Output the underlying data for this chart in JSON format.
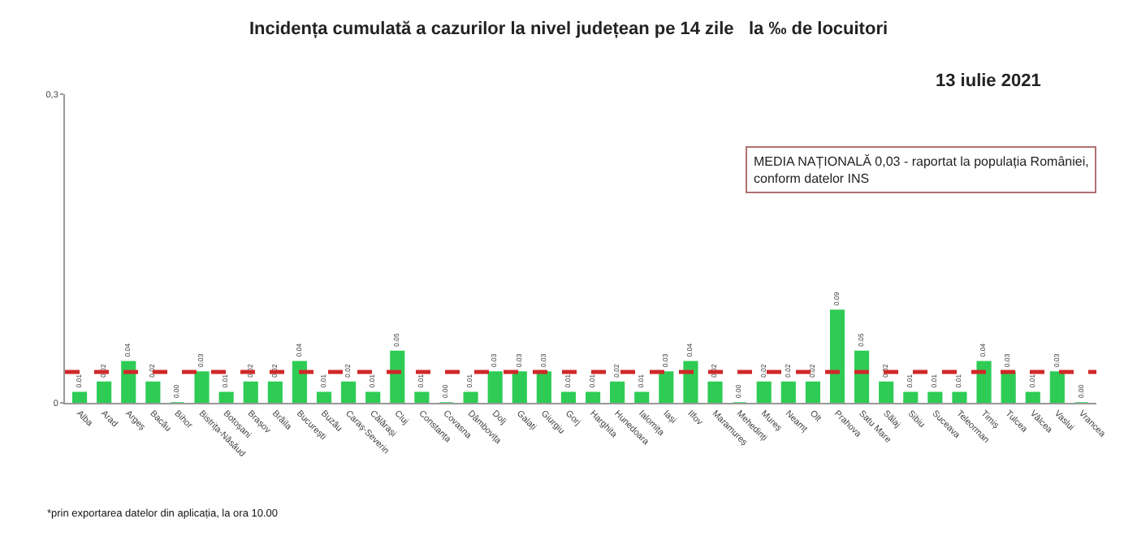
{
  "chart_data": {
    "type": "bar",
    "title": "Incidența cumulată a cazurilor la nivel județean pe 14 zile   la ‰ de locuitori",
    "subtitle": "13 iulie 2021",
    "categories": [
      "Alba",
      "Arad",
      "Argeș",
      "Bacău",
      "Bihor",
      "Bistrița-Năsăud",
      "Botoșani",
      "Brașov",
      "Brăila",
      "București",
      "Buzău",
      "Caraș-Severin",
      "Călărași",
      "Cluj",
      "Constanța",
      "Covasna",
      "Dâmbovița",
      "Dolj",
      "Galați",
      "Giurgiu",
      "Gorj",
      "Harghita",
      "Hunedoara",
      "Ialomița",
      "Iași",
      "Ilfov",
      "Maramureș",
      "Mehedinți",
      "Mureș",
      "Neamț",
      "Olt",
      "Prahova",
      "Satu Mare",
      "Sălaj",
      "Sibiu",
      "Suceava",
      "Teleorman",
      "Timiș",
      "Tulcea",
      "Vâlcea",
      "Vaslui",
      "Vrancea"
    ],
    "values": [
      0.01,
      0.02,
      0.04,
      0.02,
      0.0,
      0.03,
      0.01,
      0.02,
      0.02,
      0.04,
      0.01,
      0.02,
      0.01,
      0.05,
      0.01,
      0.0,
      0.01,
      0.03,
      0.03,
      0.03,
      0.01,
      0.01,
      0.02,
      0.01,
      0.03,
      0.04,
      0.02,
      0.0,
      0.02,
      0.02,
      0.02,
      0.09,
      0.05,
      0.02,
      0.01,
      0.01,
      0.01,
      0.04,
      0.03,
      0.01,
      0.03,
      0.0
    ],
    "value_labels": [
      "0.01",
      "0.02",
      "0.04",
      "0.02",
      "0.00",
      "0.03",
      "0.01",
      "0.02",
      "0.02",
      "0.04",
      "0.01",
      "0.02",
      "0.01",
      "0.05",
      "0.01",
      "0.00",
      "0.01",
      "0.03",
      "0.03",
      "0.03",
      "0.01",
      "0.01",
      "0.02",
      "0.01",
      "0.03",
      "0.04",
      "0.02",
      "0.00",
      "0.02",
      "0.02",
      "0.02",
      "0.09",
      "0.05",
      "0.02",
      "0.01",
      "0.01",
      "0.01",
      "0.04",
      "0.03",
      "0.01",
      "0.03",
      "0.00"
    ],
    "color": "#2ecc55",
    "ylim": [
      0,
      0.3
    ],
    "yticks": [
      {
        "value": 0,
        "label": "0"
      },
      {
        "value": 0.3,
        "label": "0,3"
      }
    ],
    "ref_lines": [
      {
        "axis": "y",
        "value": 0.03,
        "color": "#d02828",
        "line_style": "dashed"
      }
    ],
    "annotations": [
      "MEDIA NAȚIONALĂ 0,03 - raportat la populația României, conform datelor INS",
      "*prin exportarea datelor din aplicația, la ora 10.00"
    ]
  }
}
